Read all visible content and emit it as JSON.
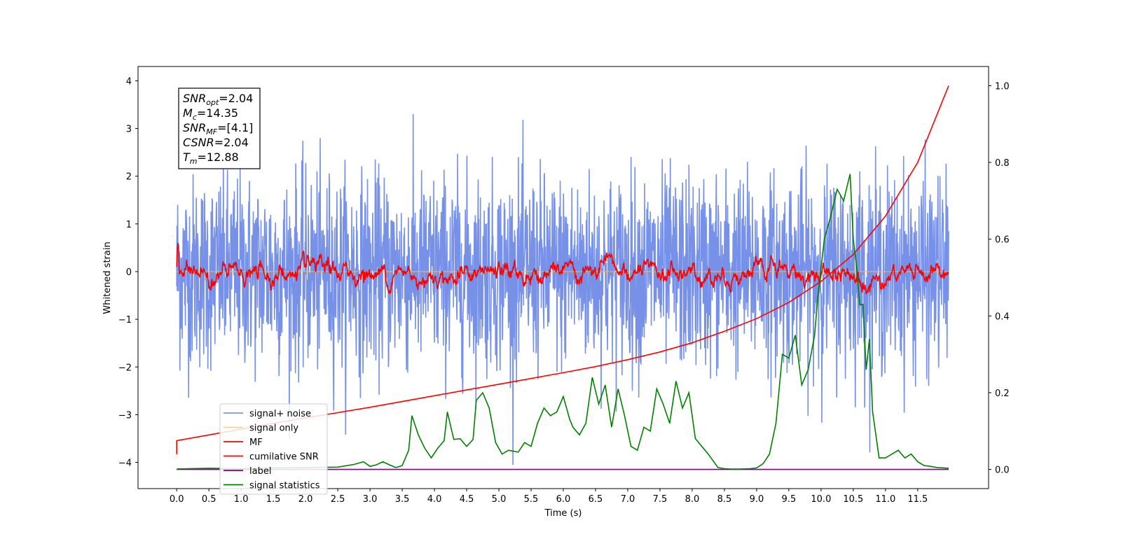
{
  "chart_data": {
    "type": "line",
    "xlabel": "Time (s)",
    "ylabel": "Whitened strain",
    "xlim": [
      -0.6,
      12.6
    ],
    "ylim": [
      -4.55,
      4.3
    ],
    "ylim_right": [
      -0.05,
      1.05
    ],
    "grid": false,
    "legend_position": "lower-left",
    "x_ticks": [
      0.0,
      0.5,
      1.0,
      1.5,
      2.0,
      2.5,
      3.0,
      3.5,
      4.0,
      4.5,
      5.0,
      5.5,
      6.0,
      6.5,
      7.0,
      7.5,
      8.0,
      8.5,
      9.0,
      9.5,
      10.0,
      10.5,
      11.0,
      11.5
    ],
    "x_tick_labels": [
      "0.0",
      "0.5",
      "1.0",
      "1.5",
      "2.0",
      "2.5",
      "3.0",
      "3.5",
      "4.0",
      "4.5",
      "5.0",
      "5.5",
      "6.0",
      "6.5",
      "7.0",
      "7.5",
      "8.0",
      "8.5",
      "9.0",
      "9.5",
      "10.0",
      "10.5",
      "11.0",
      "11.5"
    ],
    "y_ticks": [
      4,
      3,
      2,
      1,
      0,
      -1,
      -2,
      -3,
      -4
    ],
    "y_tick_labels": [
      "4",
      "3",
      "2",
      "1",
      "0",
      "−1",
      "−2",
      "−3",
      "−4"
    ],
    "y_right_ticks": [
      1.0,
      0.8,
      0.6,
      0.4,
      0.2,
      0.0
    ],
    "y_right_tick_labels": [
      "1.0",
      "0.8",
      "0.6",
      "0.4",
      "0.2",
      "0.0"
    ],
    "annotation": {
      "lines": [
        {
          "name": "SNR",
          "sub": "opt",
          "value": "=2.04"
        },
        {
          "name": "M",
          "sub": "c",
          "value": "=14.35"
        },
        {
          "name": "SNR",
          "sub": "MF",
          "value": "=[4.1]"
        },
        {
          "name": "CSNR",
          "sub": "",
          "value": "=2.04"
        },
        {
          "name": "T",
          "sub": "m",
          "value": "=12.88"
        }
      ]
    },
    "series": [
      {
        "name": "signal+ noise",
        "axis": "left",
        "color": "#6f8be6",
        "description_values": {
          "x_range": [
            0.0,
            11.98
          ],
          "envelope_upper": 1.4,
          "envelope_lower": -1.4,
          "peak_max": 3.9,
          "peak_min": -4.1
        }
      },
      {
        "name": "signal only",
        "axis": "left",
        "color": "#ffb347",
        "x": [
          0.0,
          11.98
        ],
        "y": [
          0.0,
          0.0
        ]
      },
      {
        "name": "MF",
        "axis": "left",
        "color": "#ff0000",
        "description_values": {
          "x_range": [
            0.0,
            11.98
          ],
          "mean": -0.05,
          "amplitude": 0.35,
          "peak_max": 0.87,
          "peak_min": -0.48
        }
      },
      {
        "name": "cumilative SNR",
        "axis": "right",
        "color": "#ff0000",
        "x": [
          0.0,
          0.0,
          0.5,
          1.0,
          1.5,
          2.0,
          2.5,
          3.0,
          3.5,
          4.0,
          4.5,
          5.0,
          5.5,
          6.0,
          6.5,
          7.0,
          7.5,
          8.0,
          8.5,
          9.0,
          9.5,
          10.0,
          10.5,
          11.0,
          11.5,
          11.98
        ],
        "y": [
          0.04,
          0.075,
          0.09,
          0.105,
          0.12,
          0.134,
          0.148,
          0.162,
          0.177,
          0.192,
          0.207,
          0.222,
          0.237,
          0.252,
          0.268,
          0.286,
          0.306,
          0.33,
          0.36,
          0.393,
          0.435,
          0.49,
          0.56,
          0.66,
          0.8,
          1.0
        ]
      },
      {
        "name": "label",
        "axis": "right",
        "color": "#800080",
        "x": [
          0.0,
          11.98
        ],
        "y": [
          0.0,
          0.0
        ]
      },
      {
        "name": "signal statistics",
        "axis": "right",
        "color": "#008000",
        "x": [
          0.0,
          0.5,
          1.0,
          1.5,
          2.0,
          2.5,
          2.75,
          2.9,
          3.0,
          3.1,
          3.2,
          3.3,
          3.4,
          3.5,
          3.6,
          3.65,
          3.75,
          3.85,
          3.95,
          4.05,
          4.15,
          4.2,
          4.3,
          4.4,
          4.5,
          4.6,
          4.65,
          4.75,
          4.85,
          4.95,
          5.05,
          5.15,
          5.3,
          5.4,
          5.5,
          5.6,
          5.7,
          5.8,
          5.9,
          6.0,
          6.1,
          6.15,
          6.25,
          6.35,
          6.45,
          6.55,
          6.65,
          6.75,
          6.85,
          6.95,
          7.05,
          7.15,
          7.25,
          7.35,
          7.45,
          7.55,
          7.65,
          7.75,
          7.85,
          7.95,
          8.05,
          8.15,
          8.25,
          8.4,
          8.5,
          8.6,
          8.75,
          8.9,
          9.0,
          9.1,
          9.2,
          9.3,
          9.4,
          9.5,
          9.6,
          9.7,
          9.8,
          9.9,
          9.95,
          10.05,
          10.15,
          10.25,
          10.35,
          10.45,
          10.5,
          10.55,
          10.6,
          10.65,
          10.7,
          10.75,
          10.8,
          10.9,
          11.0,
          11.1,
          11.2,
          11.3,
          11.4,
          11.5,
          11.6,
          11.7,
          11.8,
          11.9,
          11.98
        ],
        "y": [
          0.001,
          0.003,
          0.002,
          0.004,
          0.005,
          0.006,
          0.013,
          0.02,
          0.008,
          0.012,
          0.02,
          0.012,
          0.005,
          0.01,
          0.05,
          0.14,
          0.09,
          0.055,
          0.03,
          0.055,
          0.075,
          0.15,
          0.078,
          0.08,
          0.06,
          0.078,
          0.18,
          0.2,
          0.16,
          0.07,
          0.04,
          0.05,
          0.045,
          0.07,
          0.06,
          0.12,
          0.16,
          0.14,
          0.15,
          0.19,
          0.13,
          0.11,
          0.09,
          0.12,
          0.24,
          0.17,
          0.22,
          0.11,
          0.21,
          0.14,
          0.06,
          0.05,
          0.11,
          0.1,
          0.21,
          0.17,
          0.12,
          0.23,
          0.16,
          0.2,
          0.08,
          0.06,
          0.04,
          0.005,
          0.002,
          0.001,
          0.001,
          0.002,
          0.004,
          0.015,
          0.04,
          0.12,
          0.3,
          0.29,
          0.35,
          0.22,
          0.26,
          0.35,
          0.45,
          0.6,
          0.66,
          0.73,
          0.7,
          0.77,
          0.6,
          0.53,
          0.43,
          0.43,
          0.26,
          0.34,
          0.15,
          0.03,
          0.03,
          0.04,
          0.05,
          0.03,
          0.04,
          0.02,
          0.01,
          0.008,
          0.005,
          0.004,
          0.003
        ]
      }
    ]
  }
}
